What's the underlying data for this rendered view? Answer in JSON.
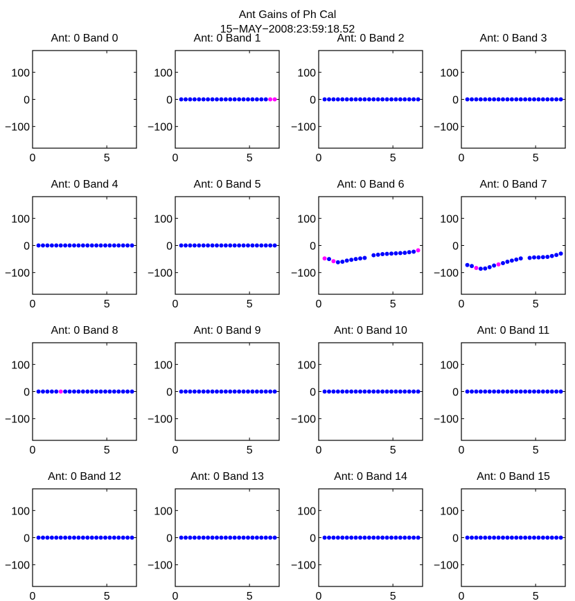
{
  "figure": {
    "title": "Ant Gains of Ph Cal",
    "subtitle": "15−MAY−2008:23:59:18.52"
  },
  "colors": {
    "normal": "#0000ff",
    "flagged": "#ff00ff",
    "axes": "#000000"
  },
  "axes_common": {
    "xlim": [
      0,
      7
    ],
    "ylim": [
      -180,
      180
    ],
    "xticks": [
      0,
      5
    ],
    "yticks": [
      100,
      0,
      -100
    ],
    "ytick_labels": [
      "100",
      "0",
      "−100"
    ]
  },
  "chart_data": {
    "type": "scatter",
    "x": [
      0.4,
      0.7,
      1.0,
      1.3,
      1.6,
      1.9,
      2.2,
      2.5,
      2.8,
      3.1,
      3.4,
      3.7,
      4.0,
      4.3,
      4.6,
      4.9,
      5.2,
      5.5,
      5.8,
      6.1,
      6.4,
      6.7
    ],
    "panels": [
      {
        "title": "Ant: 0 Band 0",
        "y": [],
        "flagged": []
      },
      {
        "title": "Ant: 0 Band 1",
        "y": [
          0,
          0,
          0,
          0,
          0,
          0,
          0,
          0,
          0,
          0,
          0,
          0,
          0,
          0,
          0,
          0,
          0,
          0,
          0,
          0,
          0,
          0
        ],
        "flagged": [
          20,
          21
        ]
      },
      {
        "title": "Ant: 0 Band 2",
        "y": [
          0,
          0,
          0,
          0,
          0,
          0,
          0,
          0,
          0,
          0,
          0,
          0,
          0,
          0,
          0,
          0,
          0,
          0,
          0,
          0,
          0,
          0
        ],
        "flagged": []
      },
      {
        "title": "Ant: 0 Band 3",
        "y": [
          0,
          0,
          0,
          0,
          0,
          0,
          0,
          0,
          0,
          0,
          0,
          0,
          0,
          0,
          0,
          0,
          0,
          0,
          0,
          0,
          0,
          0
        ],
        "flagged": []
      },
      {
        "title": "Ant: 0 Band 4",
        "y": [
          0,
          0,
          0,
          0,
          0,
          0,
          0,
          0,
          0,
          0,
          0,
          0,
          0,
          0,
          0,
          0,
          0,
          0,
          0,
          0,
          0,
          0
        ],
        "flagged": []
      },
      {
        "title": "Ant: 0 Band 5",
        "y": [
          0,
          0,
          0,
          0,
          0,
          0,
          0,
          0,
          0,
          0,
          0,
          0,
          0,
          0,
          0,
          0,
          0,
          0,
          0,
          0,
          0,
          0
        ],
        "flagged": []
      },
      {
        "title": "Ant: 0 Band 6",
        "y": [
          -48,
          -50,
          -58,
          -62,
          -60,
          -56,
          -53,
          -50,
          -48,
          -46,
          null,
          -36,
          -34,
          -32,
          -31,
          -30,
          -29,
          -28,
          -27,
          -25,
          -23,
          -18
        ],
        "flagged": [
          0,
          2,
          21
        ]
      },
      {
        "title": "Ant: 0 Band 7",
        "y": [
          -72,
          -76,
          -83,
          -86,
          -85,
          -80,
          -74,
          -70,
          -65,
          -60,
          -56,
          -52,
          -48,
          null,
          -46,
          -44,
          -44,
          -43,
          -42,
          -39,
          -35,
          -30
        ],
        "flagged": [
          2,
          7
        ]
      },
      {
        "title": "Ant: 0 Band 8",
        "y": [
          0,
          0,
          0,
          0,
          0,
          0,
          0,
          0,
          0,
          0,
          0,
          0,
          0,
          0,
          0,
          0,
          0,
          0,
          0,
          0,
          0,
          0
        ],
        "flagged": [
          5
        ]
      },
      {
        "title": "Ant: 0 Band 9",
        "y": [
          0,
          0,
          0,
          0,
          0,
          0,
          0,
          0,
          0,
          0,
          0,
          0,
          0,
          0,
          0,
          0,
          0,
          0,
          0,
          0,
          0,
          0
        ],
        "flagged": []
      },
      {
        "title": "Ant: 0 Band 10",
        "y": [
          0,
          0,
          0,
          0,
          0,
          0,
          0,
          0,
          0,
          0,
          0,
          0,
          0,
          0,
          0,
          0,
          0,
          0,
          0,
          0,
          0,
          0
        ],
        "flagged": []
      },
      {
        "title": "Ant: 0 Band 11",
        "y": [
          0,
          0,
          0,
          0,
          0,
          0,
          0,
          0,
          0,
          0,
          0,
          0,
          0,
          0,
          0,
          0,
          0,
          0,
          0,
          0,
          0,
          0
        ],
        "flagged": []
      },
      {
        "title": "Ant: 0 Band 12",
        "y": [
          0,
          0,
          0,
          0,
          0,
          0,
          0,
          0,
          0,
          0,
          0,
          0,
          0,
          0,
          0,
          0,
          0,
          0,
          0,
          0,
          0,
          0
        ],
        "flagged": []
      },
      {
        "title": "Ant: 0 Band 13",
        "y": [
          0,
          0,
          0,
          0,
          0,
          0,
          0,
          0,
          0,
          0,
          0,
          0,
          0,
          0,
          0,
          0,
          0,
          0,
          0,
          0,
          0,
          0
        ],
        "flagged": []
      },
      {
        "title": "Ant: 0 Band 14",
        "y": [
          0,
          0,
          0,
          0,
          0,
          0,
          0,
          0,
          0,
          0,
          0,
          0,
          0,
          0,
          0,
          0,
          0,
          0,
          0,
          0,
          0,
          0
        ],
        "flagged": []
      },
      {
        "title": "Ant: 0 Band 15",
        "y": [
          0,
          0,
          0,
          0,
          0,
          0,
          0,
          0,
          0,
          0,
          0,
          0,
          0,
          0,
          0,
          0,
          0,
          0,
          0,
          0,
          0,
          0
        ],
        "flagged": []
      }
    ]
  }
}
